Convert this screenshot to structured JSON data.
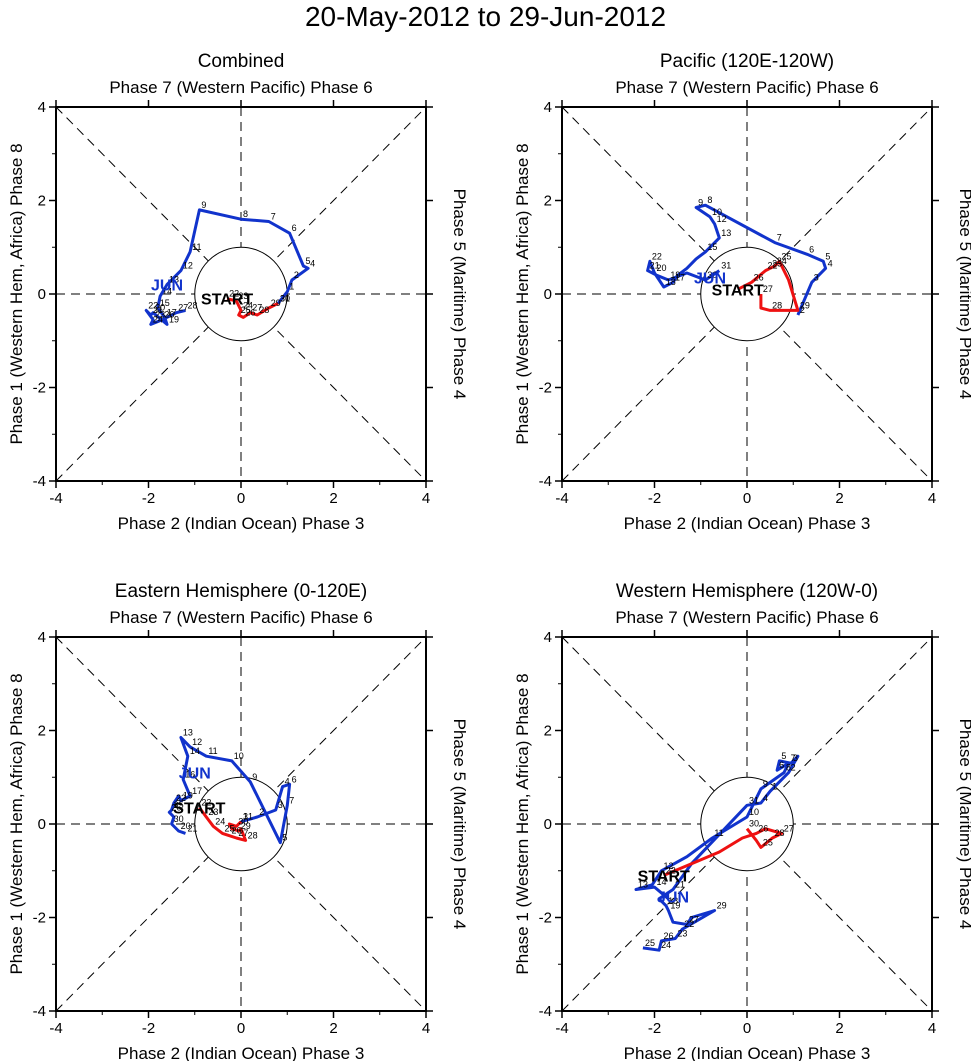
{
  "title": "20-May-2012 to 29-Jun-2012",
  "colors": {
    "may": "#ee1111",
    "jun": "#1133cc",
    "frame": "#000000",
    "grid": "#000000"
  },
  "chart_data": [
    {
      "type": "line",
      "title": "Combined",
      "top_label": "Phase 7 (Western Pacific) Phase 6",
      "bottom_label": "Phase 2 (Indian Ocean) Phase 3",
      "left_label": "Phase 1 (Western Hem, Africa) Phase 8",
      "right_label": "Phase 5 (Maritime) Phase 4",
      "xlim": [
        -4,
        4
      ],
      "ylim": [
        -4,
        4
      ],
      "ticks": [
        -4,
        -2,
        0,
        2,
        4
      ],
      "start_marker": {
        "text": "START",
        "x": -0.3,
        "y": -0.1
      },
      "month_marker": {
        "text": "JUN",
        "x": -1.6,
        "y": 0.2
      },
      "may": {
        "x": [
          -0.3,
          -0.1,
          0.0,
          -0.05,
          0.05,
          0.2,
          0.35,
          0.6,
          0.8
        ],
        "y": [
          -0.1,
          -0.15,
          -0.35,
          -0.45,
          -0.5,
          -0.4,
          -0.45,
          -0.3,
          -0.2
        ],
        "labels": [
          "22",
          "23",
          "24",
          "25",
          "26",
          "27",
          "28",
          "29",
          "30"
        ]
      },
      "jun": {
        "x": [
          0.8,
          1.0,
          1.1,
          1.45,
          1.35,
          1.05,
          0.6,
          0.0,
          -0.9,
          -1.1,
          -1.3,
          -1.6,
          -1.75,
          -1.8,
          -1.65,
          -1.6,
          -1.9,
          -1.95,
          -2.05,
          -1.9,
          -1.95,
          -1.7,
          -1.4,
          -1.2
        ],
        "y": [
          -0.2,
          0.05,
          0.3,
          0.55,
          0.6,
          1.3,
          1.55,
          1.6,
          1.8,
          0.9,
          0.5,
          0.2,
          -0.05,
          -0.3,
          -0.5,
          -0.65,
          -0.4,
          -0.45,
          -0.35,
          -0.55,
          -0.65,
          -0.55,
          -0.4,
          -0.35
        ],
        "labels": [
          "31",
          "1",
          "2",
          "4",
          "5",
          "6",
          "7",
          "8",
          "9",
          "11",
          "12",
          "13",
          "14",
          "15",
          "17",
          "19",
          "20",
          "21",
          "22",
          "23",
          "24",
          "26",
          "27",
          "28"
        ]
      }
    },
    {
      "type": "line",
      "title": "Pacific (120E-120W)",
      "top_label": "Phase 7 (Western Pacific) Phase 6",
      "bottom_label": "Phase 2 (Indian Ocean) Phase 3",
      "left_label": "Phase 1 (Western Hem, Africa) Phase 8",
      "right_label": "Phase 5 (Maritime) Phase 4",
      "xlim": [
        -4,
        4
      ],
      "ylim": [
        -4,
        4
      ],
      "ticks": [
        -4,
        -2,
        0,
        2,
        4
      ],
      "start_marker": {
        "text": "START",
        "x": -0.2,
        "y": 0.1
      },
      "month_marker": {
        "text": "JUN",
        "x": -0.8,
        "y": 0.35
      },
      "may": {
        "x": [
          -0.2,
          0.1,
          0.4,
          0.5,
          0.6,
          0.7,
          0.9,
          1.1,
          0.5,
          0.3,
          0.3
        ],
        "y": [
          0.1,
          0.25,
          0.5,
          0.55,
          0.6,
          0.7,
          0.3,
          -0.35,
          -0.35,
          -0.3,
          0.0
        ],
        "labels": [
          "",
          "26",
          "22",
          "23",
          "24",
          "25",
          "",
          "29",
          "28",
          "",
          "27"
        ]
      },
      "jun": {
        "x": [
          1.1,
          1.4,
          1.7,
          1.65,
          1.3,
          0.6,
          -0.9,
          -1.1,
          -0.8,
          -0.7,
          -0.6,
          -0.9,
          -1.1,
          -1.3,
          -1.5,
          -1.6,
          -1.8,
          -2.0,
          -2.1,
          -2.15,
          -1.95,
          -1.7,
          -1.3,
          -0.9,
          -0.6
        ],
        "y": [
          -0.45,
          0.25,
          0.55,
          0.7,
          0.85,
          1.1,
          1.9,
          1.85,
          1.65,
          1.5,
          1.2,
          0.9,
          0.75,
          0.55,
          0.4,
          0.25,
          0.15,
          0.45,
          0.7,
          0.5,
          0.4,
          0.3,
          0.45,
          0.3,
          0.5
        ],
        "labels": [
          "2",
          "3",
          "4",
          "5",
          "6",
          "7",
          "8",
          "9",
          "10",
          "12",
          "13",
          "15",
          "",
          "",
          "",
          "17",
          "18",
          "20",
          "22",
          "21",
          "",
          "19",
          "",
          "30",
          "31"
        ]
      }
    },
    {
      "type": "line",
      "title": "Eastern Hemisphere (0-120E)",
      "top_label": "Phase 7 (Western Pacific) Phase 6",
      "bottom_label": "Phase 2 (Indian Ocean) Phase 3",
      "left_label": "Phase 1 (Western Hem, Africa) Phase 8",
      "right_label": "Phase 5 (Maritime) Phase 4",
      "xlim": [
        -4,
        4
      ],
      "ylim": [
        -4,
        4
      ],
      "ticks": [
        -4,
        -2,
        0,
        2,
        4
      ],
      "start_marker": {
        "text": "START",
        "x": -0.9,
        "y": 0.35
      },
      "month_marker": {
        "text": "JUN",
        "x": -1.0,
        "y": 1.1
      },
      "may": {
        "x": [
          -0.9,
          -0.75,
          -0.6,
          -0.4,
          -0.25,
          -0.1,
          0.1,
          0.0,
          -0.05,
          -0.2,
          -0.25,
          -0.1,
          0.0
        ],
        "y": [
          0.35,
          0.15,
          -0.05,
          -0.2,
          -0.25,
          -0.3,
          -0.35,
          -0.1,
          -0.15,
          -0.1,
          0.0,
          -0.05,
          0.05
        ],
        "labels": [
          "22",
          "23",
          "24",
          "25",
          "26",
          "27",
          "28",
          "",
          "29",
          "",
          "",
          "30",
          "31"
        ]
      },
      "jun": {
        "x": [
          0.0,
          0.35,
          0.75,
          0.9,
          1.05,
          1.0,
          0.85,
          0.2,
          -0.2,
          -0.75,
          -1.1,
          -1.3,
          -1.15,
          -1.25,
          -1.1,
          -1.3,
          -1.35,
          -1.45,
          -1.5,
          -1.55,
          -1.45,
          -1.5,
          -1.35,
          -1.2
        ],
        "y": [
          0.05,
          0.15,
          0.3,
          0.8,
          0.85,
          0.4,
          -0.4,
          0.9,
          1.35,
          1.45,
          1.65,
          1.85,
          1.45,
          0.95,
          0.6,
          0.5,
          0.6,
          0.45,
          0.3,
          0.25,
          0.15,
          0.0,
          -0.15,
          -0.2
        ],
        "labels": [
          "1",
          "2",
          "3",
          "4",
          "6",
          "7",
          "5",
          "9",
          "10",
          "11",
          "12",
          "13",
          "14",
          "16",
          "17",
          "19",
          "",
          "22",
          "25",
          "26",
          "",
          "30",
          "20",
          "21"
        ]
      }
    },
    {
      "type": "line",
      "title": "Western Hemisphere (120W-0)",
      "top_label": "Phase 7 (Western Pacific) Phase 6",
      "bottom_label": "Phase 2 (Indian Ocean) Phase 3",
      "left_label": "Phase 1 (Western Hem, Africa) Phase 8",
      "right_label": "Phase 5 (Maritime) Phase 4",
      "xlim": [
        -4,
        4
      ],
      "ylim": [
        -4,
        4
      ],
      "ticks": [
        -4,
        -2,
        0,
        2,
        4
      ],
      "start_marker": {
        "text": "START",
        "x": -1.8,
        "y": -1.1
      },
      "month_marker": {
        "text": "JUN",
        "x": -1.6,
        "y": -1.55
      },
      "may": {
        "x": [
          -1.8,
          -1.2,
          -0.6,
          -0.1,
          0.2,
          0.4,
          0.75,
          0.55,
          0.3,
          0.2,
          0.0
        ],
        "y": [
          -1.1,
          -0.85,
          -0.6,
          -0.3,
          -0.2,
          -0.1,
          -0.2,
          -0.3,
          -0.5,
          -0.35,
          -0.1
        ],
        "labels": [
          "22",
          "",
          "",
          "",
          "26",
          "",
          "27",
          "28",
          "25",
          "",
          "30"
        ]
      },
      "jun": {
        "x": [
          -1.7,
          -2.0,
          -2.4,
          -2.05,
          -1.85,
          -1.3,
          -0.75,
          0.0,
          0.3,
          0.8,
          0.9,
          0.65,
          0.7,
          0.95,
          1.1,
          0.9,
          0.5,
          0.3,
          0.0,
          -1.2,
          -1.6,
          -1.9,
          -1.75,
          -1.7,
          -1.6,
          -1.3,
          -1.2,
          -0.7,
          -1.4,
          -1.55,
          -1.85,
          -1.9,
          -2.25
        ],
        "y": [
          -1.6,
          -1.35,
          -1.4,
          -1.3,
          -1.0,
          -0.7,
          -0.3,
          0.15,
          0.75,
          1.1,
          1.3,
          1.15,
          1.35,
          1.3,
          1.45,
          1.1,
          0.7,
          0.45,
          0.4,
          -0.85,
          -1.4,
          -1.6,
          -1.75,
          -1.85,
          -2.1,
          -2.15,
          -2.0,
          -1.85,
          -2.25,
          -2.45,
          -2.5,
          -2.7,
          -2.65
        ],
        "labels": [
          "",
          "14",
          "13",
          "",
          "12",
          "",
          "11",
          "10",
          "9",
          "8",
          "7",
          "6",
          "5",
          "3",
          "",
          "2",
          "1",
          "4",
          "31",
          "",
          "21",
          "",
          "18",
          "19",
          "",
          "27",
          "",
          "29",
          "22",
          "23",
          "26",
          "24",
          "25"
        ]
      }
    }
  ]
}
